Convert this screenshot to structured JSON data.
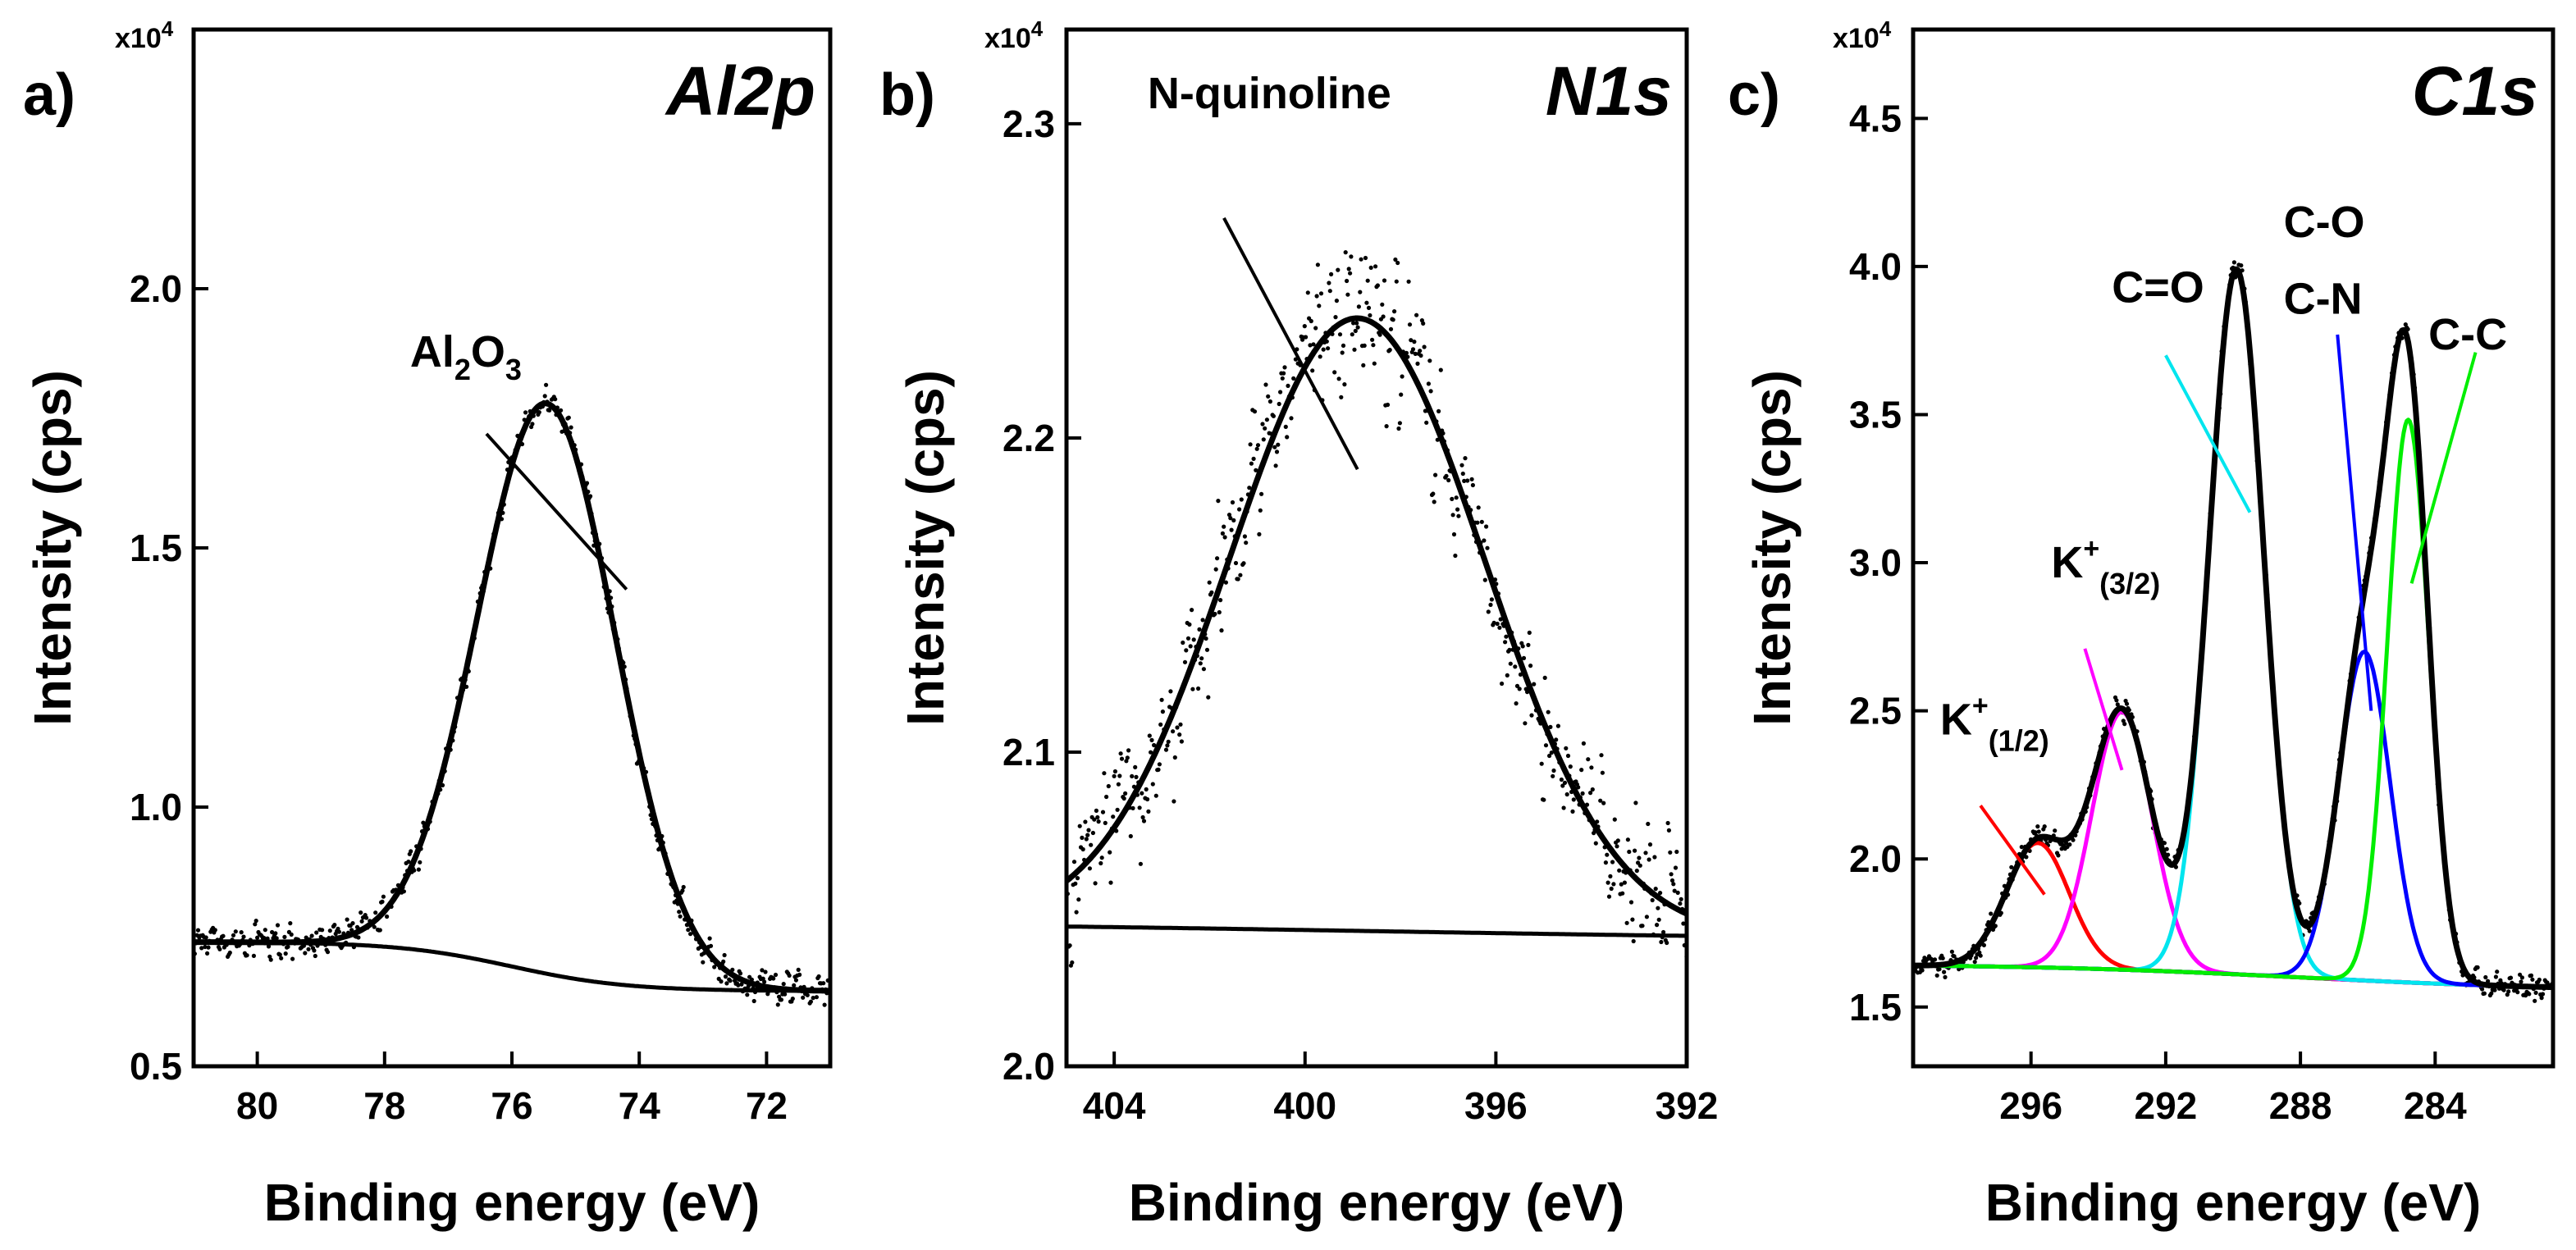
{
  "chart_data": [
    {
      "panel_label": "a)",
      "title": "Al2p",
      "type": "line",
      "xlabel": "Binding energy (eV)",
      "ylabel": "Intensity (cps)",
      "y_multiplier_label": "x10",
      "y_multiplier_exp": "4",
      "xlim": [
        81,
        71
      ],
      "ylim": [
        0.5,
        2.5
      ],
      "x_ticks": [
        80,
        78,
        76,
        74,
        72
      ],
      "x_tick_labels": [
        "80",
        "78",
        "76",
        "74",
        "72"
      ],
      "y_ticks": [
        0.5,
        1.0,
        1.5,
        2.0
      ],
      "y_tick_labels": [
        "0.5",
        "1.0",
        "1.5",
        "2.0"
      ],
      "annotations": [
        {
          "text": "Al",
          "sub": "2",
          "text2": "O",
          "sub2": "3",
          "text_x": 77.6,
          "text_y": 1.85,
          "line": [
            [
              76.4,
              1.72
            ],
            [
              74.2,
              1.42
            ]
          ],
          "color": "#000000"
        }
      ],
      "background": {
        "left": 0.74,
        "right": 0.645,
        "center": 76.0,
        "width": 0.9
      },
      "components": [],
      "fit": {
        "peaks": [
          {
            "center": 75.45,
            "height": 1.1,
            "fwhm": 2.55,
            "eta": 0.0
          }
        ]
      },
      "raw_noise": 0.045,
      "series": [
        {
          "name": "Al2O3",
          "color": "#000000"
        }
      ]
    },
    {
      "panel_label": "b)",
      "title": "N1s",
      "type": "line",
      "xlabel": "Binding energy (eV)",
      "ylabel": "Intensity (cps)",
      "y_multiplier_label": "x10",
      "y_multiplier_exp": "4",
      "xlim": [
        405,
        392
      ],
      "ylim": [
        2.0,
        2.33
      ],
      "x_ticks": [
        404,
        400,
        396,
        392
      ],
      "x_tick_labels": [
        "404",
        "400",
        "396",
        "392"
      ],
      "y_ticks": [
        2.0,
        2.1,
        2.2,
        2.3
      ],
      "y_tick_labels": [
        "2.0",
        "2.1",
        "2.2",
        "2.3"
      ],
      "annotations": [
        {
          "text": "N-quinoline",
          "text_x": 403.3,
          "text_y": 2.305,
          "line": [
            [
              401.7,
              2.27
            ],
            [
              398.9,
              2.19
            ]
          ],
          "color": "#000000"
        }
      ],
      "background": {
        "left": 2.046,
        "right": 2.04,
        "center": 398.5,
        "width": 6.0
      },
      "components": [],
      "fit": {
        "peaks": [
          {
            "center": 398.9,
            "height": 0.195,
            "fwhm": 6.3,
            "eta": 0.0
          }
        ]
      },
      "raw_noise": 0.032,
      "series": [
        {
          "name": "N-quinoline",
          "color": "#000000"
        }
      ]
    },
    {
      "panel_label": "c)",
      "title": "C1s",
      "type": "line",
      "xlabel": "Binding energy (eV)",
      "ylabel": "Intensity (cps)",
      "y_multiplier_label": "x10",
      "y_multiplier_exp": "4",
      "xlim": [
        299.5,
        280.5
      ],
      "ylim": [
        1.3,
        4.8
      ],
      "x_ticks": [
        296,
        292,
        288,
        284
      ],
      "x_tick_labels": [
        "296",
        "292",
        "288",
        "284"
      ],
      "y_ticks": [
        1.5,
        2.0,
        2.5,
        3.0,
        3.5,
        4.0,
        4.5
      ],
      "y_tick_labels": [
        "1.5",
        "2.0",
        "2.5",
        "3.0",
        "3.5",
        "4.0",
        "4.5"
      ],
      "annotations": [
        {
          "text": "K",
          "sup": "+",
          "sub": "(1/2)",
          "text_x": 298.7,
          "text_y": 2.42,
          "line": [
            [
              297.5,
              2.18
            ],
            [
              295.6,
              1.88
            ]
          ],
          "color": "#ff0000"
        },
        {
          "text": "K",
          "sup": "+",
          "sub": "(3/2)",
          "text_x": 295.4,
          "text_y": 2.95,
          "line": [
            [
              294.4,
              2.71
            ],
            [
              293.3,
              2.3
            ]
          ],
          "color": "#ff00ff"
        },
        {
          "text": "C=O",
          "text_x": 293.6,
          "text_y": 3.88,
          "line": [
            [
              292.0,
              3.7
            ],
            [
              289.5,
              3.17
            ]
          ],
          "color": "#00e5ee"
        },
        {
          "text": "C-O",
          "text_x": 288.5,
          "text_y": 4.1,
          "line": [],
          "color": "#000000"
        },
        {
          "text": "C-N",
          "text_x": 288.5,
          "text_y": 3.84,
          "line": [
            [
              286.9,
              3.77
            ],
            [
              285.9,
              2.5
            ]
          ],
          "color": "#0000ff"
        },
        {
          "text": "C-C",
          "text_x": 284.2,
          "text_y": 3.72,
          "line": [
            [
              282.8,
              3.71
            ],
            [
              284.7,
              2.93
            ]
          ],
          "color": "#00ee00"
        }
      ],
      "background": {
        "left": 1.645,
        "right": 1.555,
        "center": 288.0,
        "width": 4.0
      },
      "components": [
        {
          "name": "K+ (1/2)",
          "color": "#ff0000",
          "center": 295.8,
          "height": 0.42,
          "fwhm": 2.2
        },
        {
          "name": "K+ (3/2)",
          "color": "#ff00ff",
          "center": 293.3,
          "height": 0.87,
          "fwhm": 2.1
        },
        {
          "name": "C=O",
          "color": "#00e5ee",
          "center": 289.9,
          "height": 2.38,
          "fwhm": 1.9
        },
        {
          "name": "C-O / C-N",
          "color": "#0000ff",
          "center": 286.1,
          "height": 1.11,
          "fwhm": 1.8
        },
        {
          "name": "C-C",
          "color": "#00ee00",
          "center": 284.8,
          "height": 1.9,
          "fwhm": 1.45
        }
      ],
      "fit": {
        "use_components": true
      },
      "raw_noise": 0.06,
      "series": [
        {
          "name": "K+ (1/2)",
          "color": "#ff0000"
        },
        {
          "name": "K+ (3/2)",
          "color": "#ff00ff"
        },
        {
          "name": "C=O",
          "color": "#00e5ee"
        },
        {
          "name": "C-O / C-N",
          "color": "#0000ff"
        },
        {
          "name": "C-C",
          "color": "#00ee00"
        }
      ]
    }
  ]
}
